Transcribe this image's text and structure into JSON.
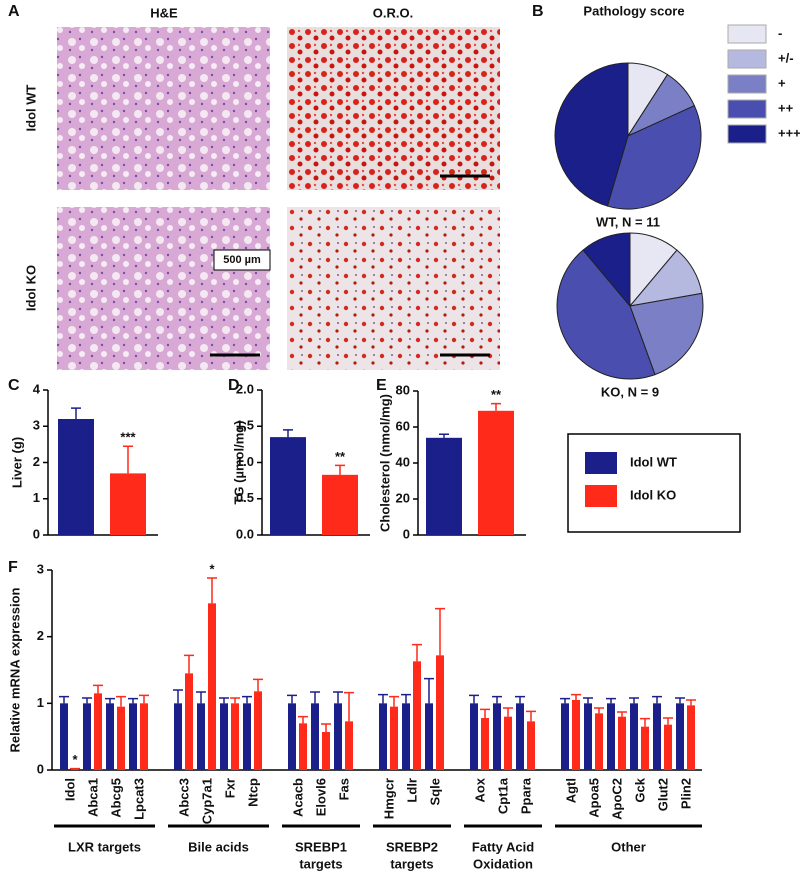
{
  "panel_labels": [
    "A",
    "B",
    "C",
    "D",
    "E",
    "F"
  ],
  "histology": {
    "columns": [
      "H&E",
      "O.R.O."
    ],
    "rows": [
      "Idol WT",
      "Idol KO"
    ],
    "scale_bar": "500 µm"
  },
  "chart_data": [
    {
      "type": "pie",
      "title": "Pathology score",
      "subtitle": "WT, N = 11",
      "categories": [
        "-",
        "+/-",
        "+",
        "++",
        "+++"
      ],
      "colors": [
        "#e6e7f3",
        "#b5b8df",
        "#7b80c6",
        "#4a4faf",
        "#1b1f8a"
      ],
      "values": [
        1,
        0,
        1,
        4,
        5
      ]
    },
    {
      "type": "pie",
      "subtitle": "KO, N = 9",
      "colors": [
        "#e6e7f3",
        "#b5b8df",
        "#7b80c6",
        "#4a4faf",
        "#1b1f8a"
      ],
      "values": [
        1,
        1,
        2,
        4,
        1
      ]
    },
    {
      "type": "bar",
      "ylabel": "Liver (g)",
      "colors": [
        "#1b1f8a",
        "#ff2a1a"
      ],
      "values": [
        3.2,
        1.7
      ],
      "errors": [
        0.3,
        0.75
      ],
      "ylim": [
        0,
        4
      ],
      "yticks": [
        0,
        1,
        2,
        3,
        4
      ],
      "significance": [
        {
          "index": 1,
          "label": "***"
        }
      ]
    },
    {
      "type": "bar",
      "ylabel": "TG (µmol/mg)",
      "colors": [
        "#1b1f8a",
        "#ff2a1a"
      ],
      "values": [
        1.35,
        0.83
      ],
      "errors": [
        0.1,
        0.13
      ],
      "ylim": [
        0,
        2
      ],
      "yticks": [
        {
          "value": 0,
          "label": "0.0"
        },
        {
          "value": 0.5,
          "label": "0.5"
        },
        {
          "value": 1,
          "label": "1.0"
        },
        {
          "value": 1.5,
          "label": "1.5"
        },
        {
          "value": 2,
          "label": "2.0"
        }
      ],
      "significance": [
        {
          "index": 1,
          "label": "**"
        }
      ]
    },
    {
      "type": "bar",
      "ylabel": "Cholesterol (nmol/mg)",
      "colors": [
        "#1b1f8a",
        "#ff2a1a"
      ],
      "values": [
        54,
        69
      ],
      "errors": [
        2,
        4
      ],
      "ylim": [
        0,
        80
      ],
      "yticks": [
        0,
        20,
        40,
        60,
        80
      ],
      "significance": [
        {
          "index": 1,
          "label": "**"
        }
      ]
    },
    {
      "type": "grouped_bar",
      "ylabel": "Relative mRNA expression",
      "categories": [
        "Idol",
        "Abca1",
        "Abcg5",
        "Lpcat3",
        "Abcc3",
        "Cyp7a1",
        "Fxr",
        "Ntcp",
        "Acacb",
        "Elovl6",
        "Fas",
        "Hmgcr",
        "Ldlr",
        "Sqle",
        "Aox",
        "Cpt1a",
        "Ppara",
        "Agtl",
        "Apoa5",
        "ApoC2",
        "Gck",
        "Glut2",
        "Plin2"
      ],
      "groups": [
        {
          "label": [
            "LXR targets"
          ],
          "start": 0,
          "end": 3
        },
        {
          "label": [
            "Bile acids"
          ],
          "start": 4,
          "end": 7
        },
        {
          "label": [
            "SREBP1",
            "targets"
          ],
          "start": 8,
          "end": 10
        },
        {
          "label": [
            "SREBP2",
            "targets"
          ],
          "start": 11,
          "end": 13
        },
        {
          "label": [
            "Fatty Acid",
            "Oxidation"
          ],
          "start": 14,
          "end": 16
        },
        {
          "label": [
            "Other"
          ],
          "start": 17,
          "end": 22
        }
      ],
      "series": [
        {
          "name": "Idol WT",
          "color": "#1b1f8a",
          "values": [
            1,
            1,
            1,
            1,
            1,
            1,
            1,
            1,
            1,
            1,
            1,
            1,
            1,
            1,
            1,
            1,
            1,
            1,
            1,
            1,
            1,
            1,
            1
          ],
          "errors": [
            0.1,
            0.08,
            0.07,
            0.07,
            0.2,
            0.17,
            0.08,
            0.1,
            0.12,
            0.17,
            0.17,
            0.13,
            0.13,
            0.37,
            0.12,
            0.1,
            0.1,
            0.07,
            0.08,
            0.07,
            0.08,
            0.1,
            0.08
          ]
        },
        {
          "name": "Idol KO",
          "color": "#ff2a1a",
          "values": [
            0.01,
            1.15,
            0.95,
            1,
            1.45,
            2.5,
            1,
            1.18,
            0.7,
            0.57,
            0.73,
            0.95,
            1.63,
            1.72,
            0.78,
            0.8,
            0.73,
            1.05,
            0.85,
            0.8,
            0.65,
            0.68,
            0.97
          ],
          "errors": [
            0.01,
            0.12,
            0.15,
            0.12,
            0.27,
            0.38,
            0.08,
            0.18,
            0.1,
            0.12,
            0.43,
            0.15,
            0.25,
            0.7,
            0.13,
            0.13,
            0.15,
            0.08,
            0.08,
            0.07,
            0.12,
            0.1,
            0.08
          ]
        }
      ],
      "ylim": [
        0,
        3
      ],
      "yticks": [
        0,
        1,
        2,
        3
      ],
      "significance": [
        {
          "index": 0,
          "series": 1,
          "label": "*"
        },
        {
          "index": 5,
          "series": 1,
          "label": "*"
        }
      ]
    }
  ]
}
